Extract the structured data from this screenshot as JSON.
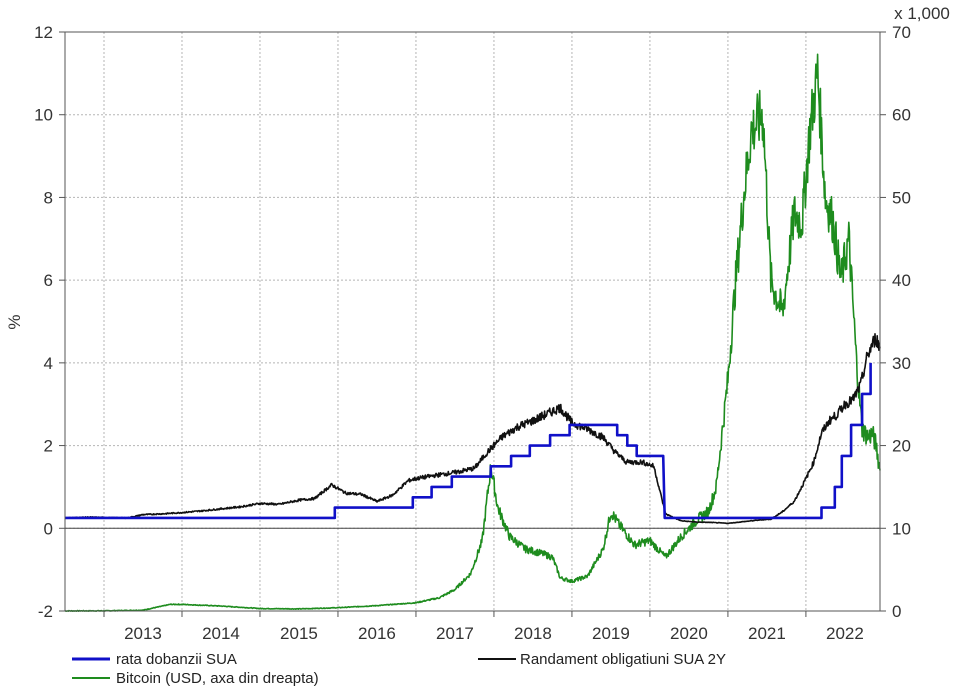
{
  "chart_data": {
    "type": "line",
    "title": "",
    "xlabel": "",
    "ylabel": "%",
    "y2_multiplier_label": "x 1,000",
    "xlim": [
      2012.5,
      2022.95
    ],
    "ylim": [
      -2,
      12
    ],
    "y2lim": [
      0,
      70
    ],
    "x_ticks": [
      "2013",
      "2014",
      "2015",
      "2016",
      "2017",
      "2018",
      "2019",
      "2020",
      "2021",
      "2022"
    ],
    "y_ticks": [
      "-2",
      "0",
      "2",
      "4",
      "6",
      "8",
      "10",
      "12"
    ],
    "y2_ticks": [
      "0",
      "10",
      "20",
      "30",
      "40",
      "50",
      "60",
      "70"
    ],
    "grid": true,
    "legend_position": "bottom",
    "series": [
      {
        "name": "rata dobanzii SUA",
        "axis": "left",
        "color": "#1010c8",
        "points": [
          [
            2012.5,
            0.25
          ],
          [
            2015.96,
            0.25
          ],
          [
            2015.96,
            0.5
          ],
          [
            2016.96,
            0.5
          ],
          [
            2016.96,
            0.75
          ],
          [
            2017.2,
            0.75
          ],
          [
            2017.2,
            1.0
          ],
          [
            2017.46,
            1.0
          ],
          [
            2017.46,
            1.25
          ],
          [
            2017.96,
            1.25
          ],
          [
            2017.96,
            1.5
          ],
          [
            2018.22,
            1.5
          ],
          [
            2018.22,
            1.75
          ],
          [
            2018.46,
            1.75
          ],
          [
            2018.46,
            2.0
          ],
          [
            2018.72,
            2.0
          ],
          [
            2018.72,
            2.25
          ],
          [
            2018.97,
            2.25
          ],
          [
            2018.97,
            2.5
          ],
          [
            2019.58,
            2.5
          ],
          [
            2019.58,
            2.25
          ],
          [
            2019.71,
            2.25
          ],
          [
            2019.71,
            2.0
          ],
          [
            2019.83,
            2.0
          ],
          [
            2019.83,
            1.75
          ],
          [
            2020.17,
            1.75
          ],
          [
            2020.19,
            0.25
          ],
          [
            2022.2,
            0.25
          ],
          [
            2022.2,
            0.5
          ],
          [
            2022.37,
            0.5
          ],
          [
            2022.37,
            1.0
          ],
          [
            2022.46,
            1.0
          ],
          [
            2022.46,
            1.75
          ],
          [
            2022.58,
            1.75
          ],
          [
            2022.58,
            2.5
          ],
          [
            2022.72,
            2.5
          ],
          [
            2022.72,
            3.25
          ],
          [
            2022.83,
            3.25
          ],
          [
            2022.83,
            4.0
          ]
        ]
      },
      {
        "name": "Randament obligatiuni SUA 2Y",
        "axis": "left",
        "color": "#111111",
        "points": [
          [
            2012.5,
            0.25
          ],
          [
            2012.8,
            0.27
          ],
          [
            2013.0,
            0.26
          ],
          [
            2013.3,
            0.25
          ],
          [
            2013.5,
            0.33
          ],
          [
            2013.75,
            0.35
          ],
          [
            2014.0,
            0.38
          ],
          [
            2014.25,
            0.42
          ],
          [
            2014.5,
            0.47
          ],
          [
            2014.75,
            0.52
          ],
          [
            2015.0,
            0.6
          ],
          [
            2015.25,
            0.58
          ],
          [
            2015.5,
            0.68
          ],
          [
            2015.7,
            0.72
          ],
          [
            2015.92,
            1.05
          ],
          [
            2016.1,
            0.85
          ],
          [
            2016.3,
            0.82
          ],
          [
            2016.5,
            0.65
          ],
          [
            2016.7,
            0.8
          ],
          [
            2016.9,
            1.15
          ],
          [
            2017.0,
            1.2
          ],
          [
            2017.25,
            1.28
          ],
          [
            2017.5,
            1.35
          ],
          [
            2017.75,
            1.45
          ],
          [
            2017.92,
            1.85
          ],
          [
            2018.1,
            2.2
          ],
          [
            2018.3,
            2.45
          ],
          [
            2018.5,
            2.6
          ],
          [
            2018.7,
            2.78
          ],
          [
            2018.85,
            2.92
          ],
          [
            2019.0,
            2.55
          ],
          [
            2019.2,
            2.4
          ],
          [
            2019.4,
            2.2
          ],
          [
            2019.55,
            1.85
          ],
          [
            2019.7,
            1.6
          ],
          [
            2019.9,
            1.6
          ],
          [
            2020.05,
            1.5
          ],
          [
            2020.2,
            0.35
          ],
          [
            2020.4,
            0.18
          ],
          [
            2020.6,
            0.15
          ],
          [
            2020.8,
            0.14
          ],
          [
            2021.0,
            0.12
          ],
          [
            2021.2,
            0.16
          ],
          [
            2021.4,
            0.2
          ],
          [
            2021.55,
            0.22
          ],
          [
            2021.7,
            0.4
          ],
          [
            2021.85,
            0.65
          ],
          [
            2022.0,
            1.2
          ],
          [
            2022.1,
            1.6
          ],
          [
            2022.2,
            2.3
          ],
          [
            2022.3,
            2.6
          ],
          [
            2022.4,
            2.75
          ],
          [
            2022.5,
            3.0
          ],
          [
            2022.6,
            3.1
          ],
          [
            2022.7,
            3.45
          ],
          [
            2022.78,
            4.1
          ],
          [
            2022.85,
            4.45
          ],
          [
            2022.9,
            4.6
          ],
          [
            2022.95,
            4.35
          ]
        ]
      },
      {
        "name": "Bitcoin (USD, axa din dreapta)",
        "axis": "right",
        "color": "#1e8c1e",
        "points": [
          [
            2012.5,
            0.01
          ],
          [
            2013.0,
            0.02
          ],
          [
            2013.5,
            0.1
          ],
          [
            2013.85,
            0.8
          ],
          [
            2014.0,
            0.8
          ],
          [
            2014.5,
            0.6
          ],
          [
            2015.0,
            0.3
          ],
          [
            2015.5,
            0.25
          ],
          [
            2016.0,
            0.4
          ],
          [
            2016.5,
            0.65
          ],
          [
            2017.0,
            1.0
          ],
          [
            2017.3,
            1.6
          ],
          [
            2017.5,
            2.6
          ],
          [
            2017.7,
            4.5
          ],
          [
            2017.85,
            8.5
          ],
          [
            2017.96,
            17.5
          ],
          [
            2018.05,
            12.5
          ],
          [
            2018.2,
            9.0
          ],
          [
            2018.4,
            7.5
          ],
          [
            2018.6,
            7.0
          ],
          [
            2018.75,
            6.5
          ],
          [
            2018.85,
            4.0
          ],
          [
            2019.0,
            3.6
          ],
          [
            2019.2,
            4.2
          ],
          [
            2019.4,
            7.5
          ],
          [
            2019.5,
            12.0
          ],
          [
            2019.6,
            10.5
          ],
          [
            2019.8,
            8.0
          ],
          [
            2020.0,
            8.5
          ],
          [
            2020.2,
            6.5
          ],
          [
            2020.4,
            9.0
          ],
          [
            2020.6,
            11.0
          ],
          [
            2020.75,
            12.0
          ],
          [
            2020.85,
            15.0
          ],
          [
            2021.0,
            28.0
          ],
          [
            2021.1,
            40.0
          ],
          [
            2021.2,
            50.0
          ],
          [
            2021.3,
            58.0
          ],
          [
            2021.45,
            60.0
          ],
          [
            2021.55,
            40.0
          ],
          [
            2021.7,
            36.0
          ],
          [
            2021.85,
            48.0
          ],
          [
            2021.95,
            47.0
          ],
          [
            2022.05,
            58.0
          ],
          [
            2022.15,
            65.0
          ],
          [
            2022.25,
            50.0
          ],
          [
            2022.35,
            47.0
          ],
          [
            2022.45,
            40.0
          ],
          [
            2022.55,
            45.0
          ],
          [
            2022.65,
            30.0
          ],
          [
            2022.72,
            22.0
          ],
          [
            2022.8,
            21.0
          ],
          [
            2022.85,
            21.5
          ],
          [
            2022.9,
            20.0
          ],
          [
            2022.95,
            17.0
          ]
        ]
      }
    ]
  }
}
